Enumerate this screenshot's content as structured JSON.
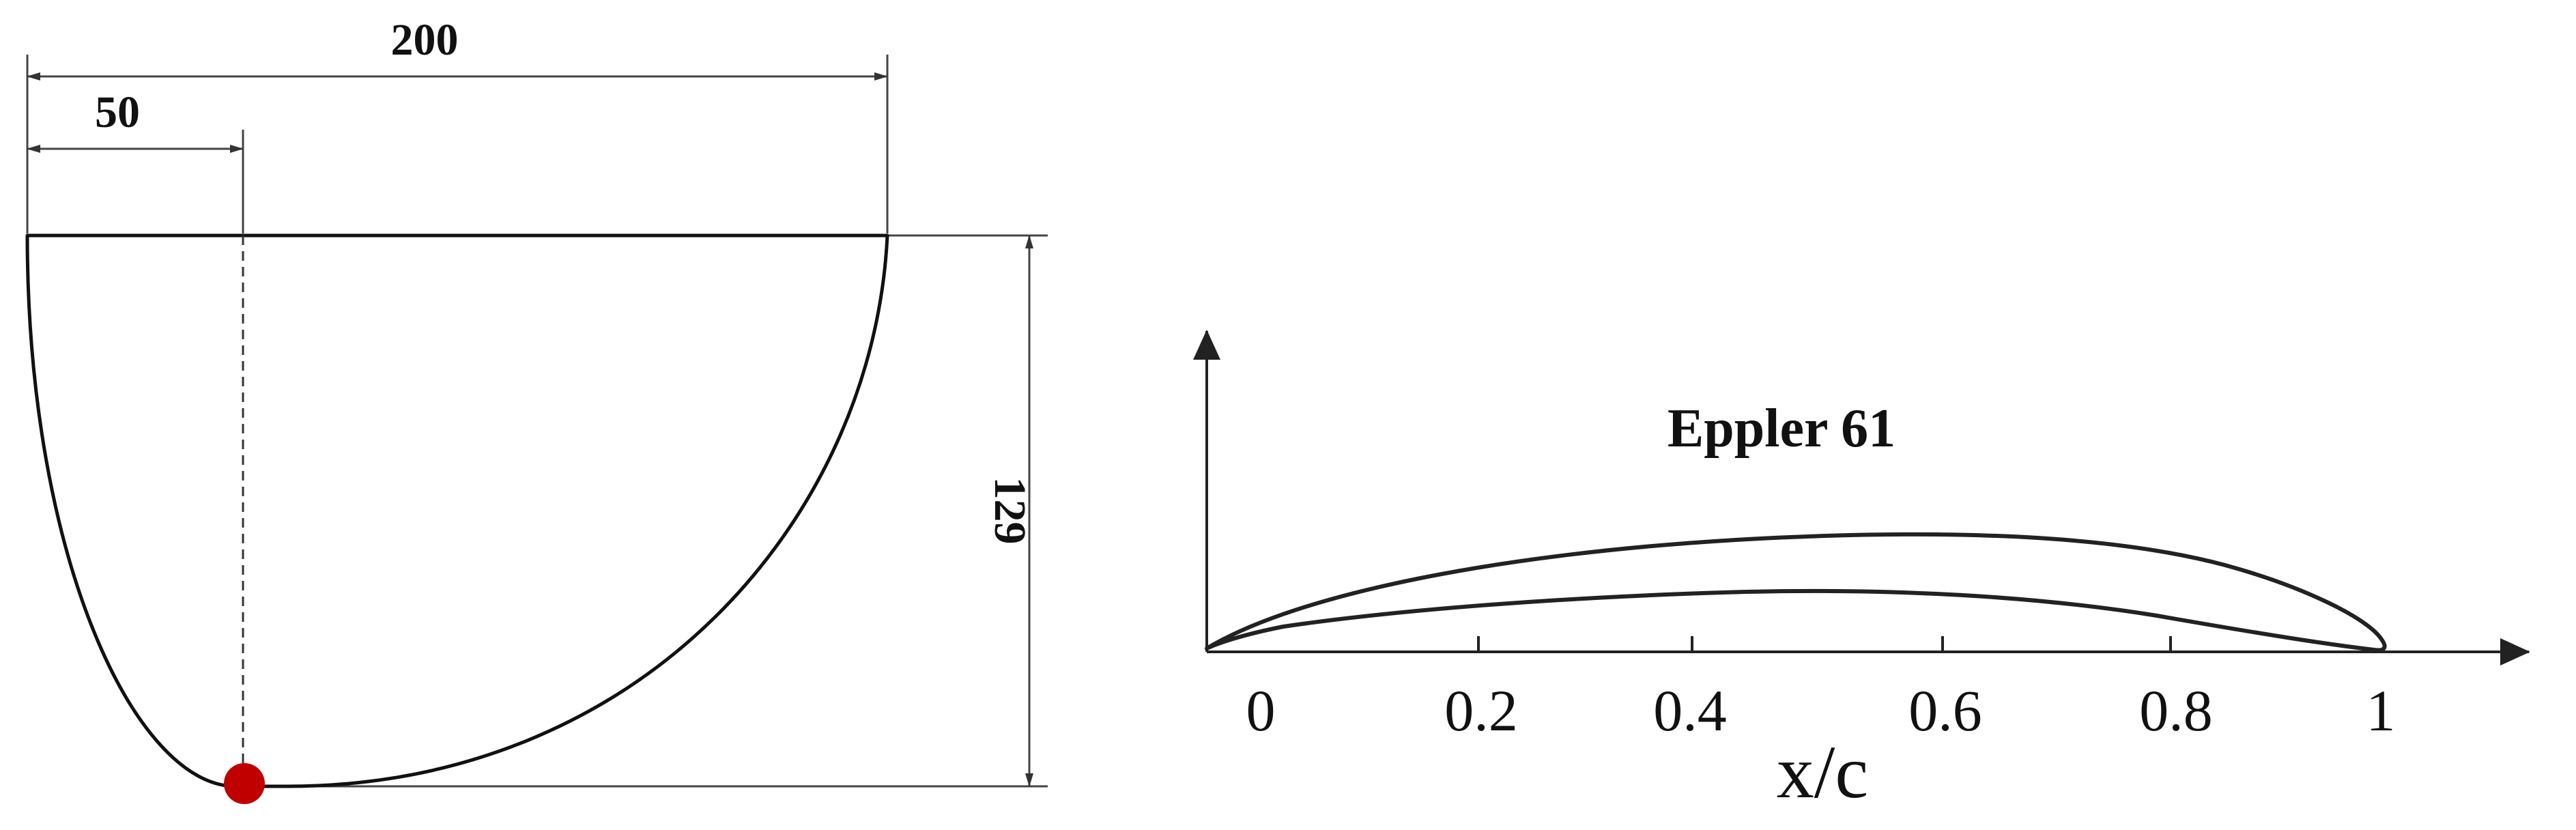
{
  "planform": {
    "span_label": "200",
    "pivot_label": "50",
    "chord_label": "129",
    "pivot_marker_color": "#c00000",
    "outline_color": "#111111"
  },
  "airfoil": {
    "title": "Eppler 61",
    "xlabel": "x/c",
    "ticks": [
      "0",
      "0.2",
      "0.4",
      "0.6",
      "0.8",
      "1"
    ],
    "outline_color": "#222222"
  }
}
